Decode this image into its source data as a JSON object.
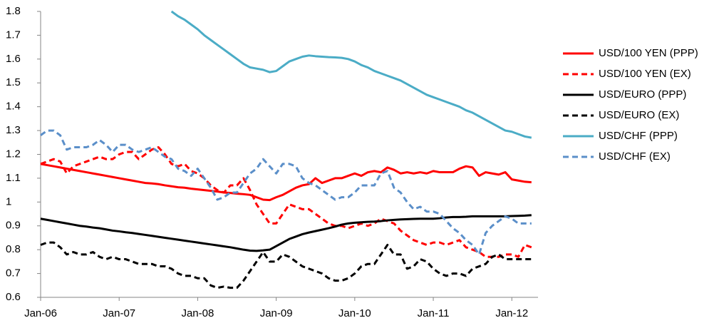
{
  "chart_data": {
    "type": "line",
    "categories": [
      "Jan-06",
      null,
      null,
      null,
      null,
      null,
      null,
      null,
      null,
      null,
      null,
      null,
      "Jan-07",
      null,
      null,
      null,
      null,
      null,
      null,
      null,
      null,
      null,
      null,
      null,
      "Jan-08",
      null,
      null,
      null,
      null,
      null,
      null,
      null,
      null,
      null,
      null,
      null,
      "Jan-09",
      null,
      null,
      null,
      null,
      null,
      null,
      null,
      null,
      null,
      null,
      null,
      "Jan-10",
      null,
      null,
      null,
      null,
      null,
      null,
      null,
      null,
      null,
      null,
      null,
      "Jan-11",
      null,
      null,
      null,
      null,
      null,
      null,
      null,
      null,
      null,
      null,
      null,
      "Jan-12",
      null,
      null,
      null
    ],
    "ylim": [
      0.6,
      1.8
    ],
    "yticks": [
      0.6,
      0.7,
      0.8,
      0.9,
      1,
      1.1,
      1.2,
      1.3,
      1.4,
      1.5,
      1.6,
      1.7,
      1.8
    ],
    "legend": "right",
    "series": [
      {
        "name": "USD/100 YEN (PPP)",
        "color": "#ff0000",
        "dash": false,
        "values": [
          1.16,
          1.155,
          1.15,
          1.145,
          1.14,
          1.135,
          1.13,
          1.125,
          1.12,
          1.115,
          1.11,
          1.105,
          1.1,
          1.095,
          1.09,
          1.085,
          1.08,
          1.078,
          1.075,
          1.07,
          1.066,
          1.062,
          1.06,
          1.056,
          1.053,
          1.05,
          1.047,
          1.044,
          1.04,
          1.038,
          1.035,
          1.033,
          1.03,
          1.02,
          1.01,
          1.008,
          1.02,
          1.03,
          1.045,
          1.06,
          1.07,
          1.075,
          1.1,
          1.08,
          1.09,
          1.1,
          1.1,
          1.11,
          1.12,
          1.11,
          1.125,
          1.13,
          1.125,
          1.145,
          1.135,
          1.12,
          1.125,
          1.12,
          1.125,
          1.12,
          1.13,
          1.125,
          1.125,
          1.125,
          1.14,
          1.15,
          1.145,
          1.11,
          1.125,
          1.12,
          1.115,
          1.125,
          1.095,
          1.09,
          1.085,
          1.083
        ]
      },
      {
        "name": "USD/100 YEN (EX)",
        "color": "#ff0000",
        "dash": true,
        "values": [
          1.16,
          1.17,
          1.18,
          1.17,
          1.12,
          1.15,
          1.16,
          1.17,
          1.18,
          1.19,
          1.18,
          1.18,
          1.2,
          1.21,
          1.21,
          1.18,
          1.2,
          1.22,
          1.23,
          1.2,
          1.16,
          1.15,
          1.16,
          1.13,
          1.12,
          1.1,
          1.07,
          1.05,
          1.04,
          1.07,
          1.07,
          1.1,
          1.05,
          0.99,
          0.95,
          0.91,
          0.91,
          0.95,
          0.99,
          0.98,
          0.97,
          0.97,
          0.95,
          0.93,
          0.91,
          0.9,
          0.9,
          0.89,
          0.9,
          0.91,
          0.9,
          0.91,
          0.93,
          0.92,
          0.91,
          0.88,
          0.86,
          0.84,
          0.83,
          0.82,
          0.83,
          0.83,
          0.82,
          0.83,
          0.84,
          0.81,
          0.8,
          0.79,
          0.77,
          0.77,
          0.77,
          0.78,
          0.78,
          0.77,
          0.82,
          0.81
        ]
      },
      {
        "name": "USD/EURO (PPP)",
        "color": "#000000",
        "dash": false,
        "values": [
          0.93,
          0.925,
          0.92,
          0.915,
          0.91,
          0.905,
          0.9,
          0.897,
          0.893,
          0.89,
          0.885,
          0.88,
          0.877,
          0.873,
          0.87,
          0.866,
          0.862,
          0.858,
          0.854,
          0.85,
          0.846,
          0.842,
          0.838,
          0.834,
          0.83,
          0.826,
          0.822,
          0.818,
          0.814,
          0.81,
          0.805,
          0.8,
          0.796,
          0.795,
          0.797,
          0.8,
          0.815,
          0.83,
          0.845,
          0.855,
          0.865,
          0.872,
          0.878,
          0.884,
          0.89,
          0.897,
          0.905,
          0.91,
          0.913,
          0.915,
          0.917,
          0.918,
          0.92,
          0.923,
          0.925,
          0.927,
          0.928,
          0.929,
          0.93,
          0.93,
          0.93,
          0.932,
          0.935,
          0.937,
          0.937,
          0.938,
          0.94,
          0.94,
          0.94,
          0.94,
          0.94,
          0.94,
          0.941,
          0.942,
          0.943,
          0.945
        ]
      },
      {
        "name": "USD/EURO (EX)",
        "color": "#000000",
        "dash": true,
        "values": [
          0.82,
          0.83,
          0.83,
          0.81,
          0.78,
          0.79,
          0.78,
          0.78,
          0.79,
          0.77,
          0.76,
          0.77,
          0.76,
          0.76,
          0.75,
          0.74,
          0.74,
          0.74,
          0.73,
          0.73,
          0.72,
          0.7,
          0.69,
          0.69,
          0.68,
          0.68,
          0.65,
          0.64,
          0.645,
          0.64,
          0.64,
          0.67,
          0.71,
          0.75,
          0.79,
          0.75,
          0.75,
          0.78,
          0.77,
          0.75,
          0.73,
          0.72,
          0.71,
          0.7,
          0.68,
          0.67,
          0.67,
          0.68,
          0.7,
          0.73,
          0.74,
          0.74,
          0.78,
          0.82,
          0.78,
          0.78,
          0.72,
          0.73,
          0.76,
          0.75,
          0.72,
          0.7,
          0.69,
          0.7,
          0.7,
          0.69,
          0.72,
          0.73,
          0.74,
          0.77,
          0.78,
          0.76,
          0.76,
          0.76,
          0.76,
          0.76
        ]
      },
      {
        "name": "USD/CHF (PPP)",
        "color": "#4bacc6",
        "dash": false,
        "values": [
          null,
          null,
          null,
          null,
          null,
          null,
          null,
          null,
          null,
          null,
          null,
          null,
          null,
          null,
          null,
          null,
          null,
          null,
          null,
          null,
          1.8,
          1.78,
          1.765,
          1.745,
          1.725,
          1.7,
          1.68,
          1.66,
          1.64,
          1.62,
          1.6,
          1.58,
          1.565,
          1.56,
          1.555,
          1.545,
          1.55,
          1.57,
          1.59,
          1.6,
          1.61,
          1.615,
          1.612,
          1.61,
          1.608,
          1.607,
          1.605,
          1.6,
          1.59,
          1.575,
          1.565,
          1.55,
          1.54,
          1.53,
          1.52,
          1.51,
          1.495,
          1.48,
          1.465,
          1.45,
          1.44,
          1.43,
          1.42,
          1.41,
          1.4,
          1.385,
          1.375,
          1.36,
          1.345,
          1.33,
          1.315,
          1.3,
          1.295,
          1.285,
          1.275,
          1.27
        ]
      },
      {
        "name": "USD/CHF (EX)",
        "color": "#5b8fc9",
        "dash": true,
        "values": [
          1.28,
          1.3,
          1.3,
          1.28,
          1.22,
          1.23,
          1.23,
          1.23,
          1.24,
          1.26,
          1.24,
          1.21,
          1.24,
          1.24,
          1.22,
          1.21,
          1.22,
          1.23,
          1.21,
          1.19,
          1.18,
          1.14,
          1.13,
          1.11,
          1.14,
          1.1,
          1.06,
          1.01,
          1.02,
          1.04,
          1.04,
          1.08,
          1.12,
          1.14,
          1.18,
          1.15,
          1.12,
          1.16,
          1.16,
          1.15,
          1.1,
          1.08,
          1.07,
          1.05,
          1.03,
          1.01,
          1.02,
          1.02,
          1.04,
          1.07,
          1.07,
          1.07,
          1.12,
          1.13,
          1.06,
          1.04,
          1,
          0.97,
          0.98,
          0.96,
          0.96,
          0.95,
          0.92,
          0.89,
          0.87,
          0.84,
          0.82,
          0.78,
          0.87,
          0.9,
          0.92,
          0.94,
          0.93,
          0.91,
          0.91,
          0.91
        ]
      }
    ]
  }
}
